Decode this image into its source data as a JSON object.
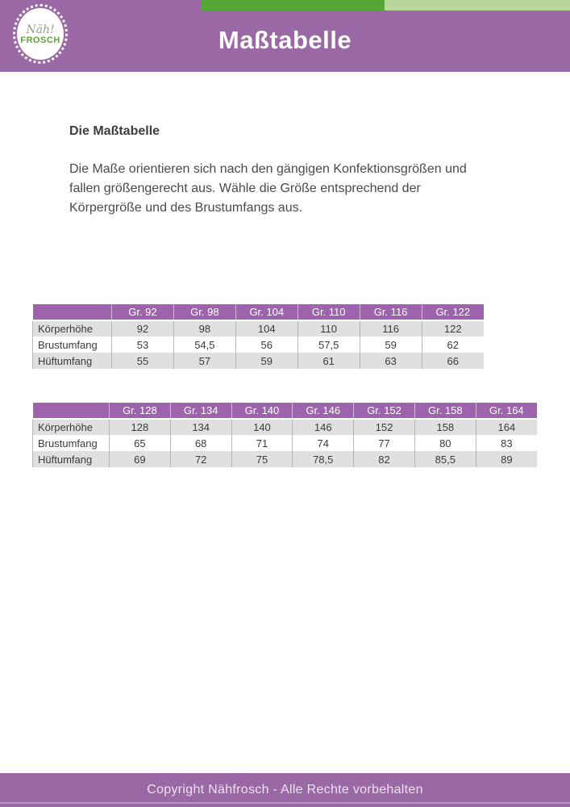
{
  "colors": {
    "banner_purple": "#9a68a4",
    "table_header_purple": "#9d63ac",
    "dark_green": "#53a735",
    "light_green": "#b7d79c",
    "row_grey": "#e0e0e0",
    "text_dark": "#3d3d3d"
  },
  "header": {
    "title": "Maßtabelle",
    "logo": {
      "script": "Näh!",
      "name": "FROSCH"
    }
  },
  "content": {
    "heading": "Die Maßtabelle",
    "paragraph": "Die Maße orientieren sich nach den gängigen Konfektionsgrößen und fallen größengerecht aus. Wähle die Größe entsprechend der Körpergröße und des Brustumfangs aus."
  },
  "tables": [
    {
      "label_col_width": 98,
      "columns": [
        "",
        "Gr. 92",
        "Gr. 98",
        "Gr. 104",
        "Gr. 110",
        "Gr. 116",
        "Gr. 122"
      ],
      "rows": [
        {
          "label": "Körperhöhe",
          "values": [
            "92",
            "98",
            "104",
            "110",
            "116",
            "122"
          ]
        },
        {
          "label": "Brustumfang",
          "values": [
            "53",
            "54,5",
            "56",
            "57,5",
            "59",
            "62"
          ]
        },
        {
          "label": "Hüftumfang",
          "values": [
            "55",
            "57",
            "59",
            "61",
            "63",
            "66"
          ]
        }
      ]
    },
    {
      "label_col_width": 95,
      "columns": [
        "",
        "Gr. 128",
        "Gr. 134",
        "Gr. 140",
        "Gr. 146",
        "Gr. 152",
        "Gr. 158",
        "Gr. 164"
      ],
      "rows": [
        {
          "label": "Körperhöhe",
          "values": [
            "128",
            "134",
            "140",
            "146",
            "152",
            "158",
            "164"
          ]
        },
        {
          "label": "Brustumfang",
          "values": [
            "65",
            "68",
            "71",
            "74",
            "77",
            "80",
            "83"
          ]
        },
        {
          "label": "Hüftumfang",
          "values": [
            "69",
            "72",
            "75",
            "78,5",
            "82",
            "85,5",
            "89"
          ]
        }
      ]
    }
  ],
  "footer": {
    "text": "Copyright Nähfrosch - Alle Rechte vorbehalten"
  }
}
